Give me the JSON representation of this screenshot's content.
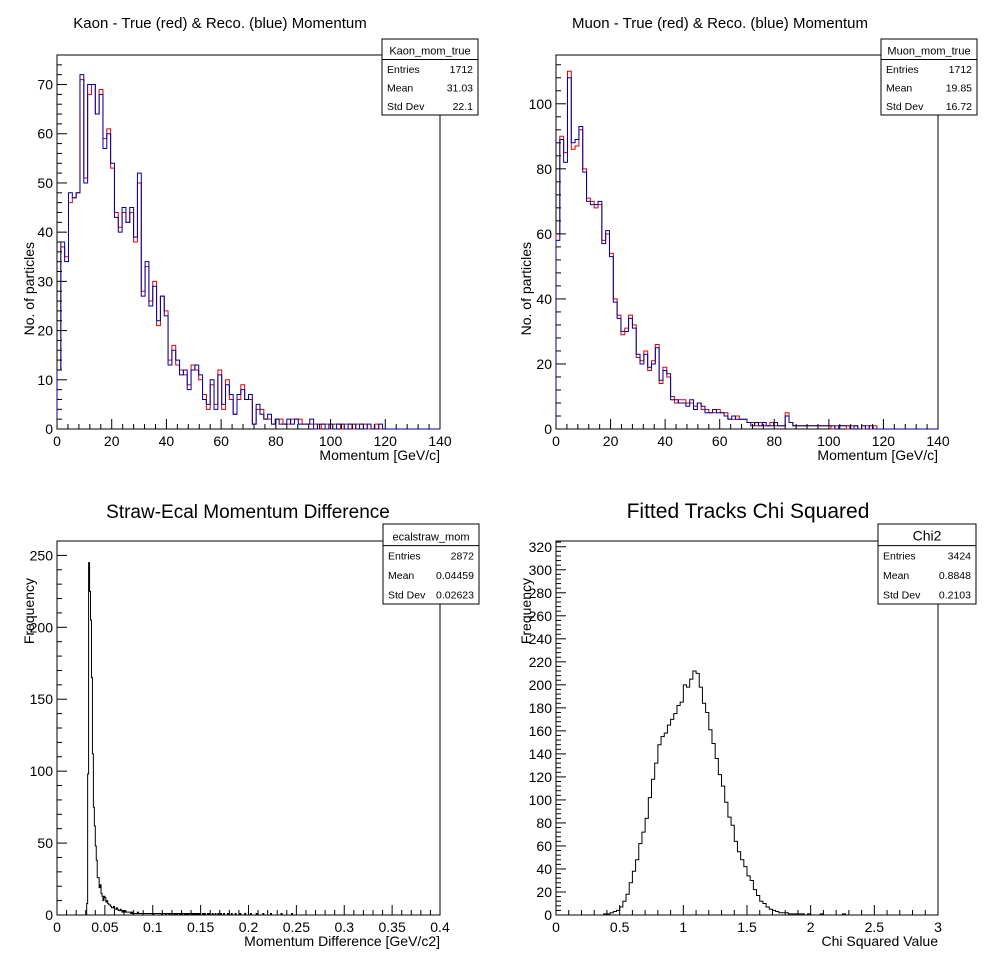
{
  "chart_data": [
    {
      "type": "histogram",
      "title": "Kaon - True (red) & Reco. (blue) Momentum",
      "xlabel": "Momentum [GeV/c]",
      "ylabel": "No. of particles",
      "xlim": [
        0,
        140
      ],
      "ylim": [
        0,
        76
      ],
      "xticks": [
        0,
        20,
        40,
        60,
        80,
        100,
        120,
        140
      ],
      "yticks": [
        0,
        10,
        20,
        30,
        40,
        50,
        60,
        70
      ],
      "stats": {
        "name": "Kaon_mom_true",
        "rows": [
          [
            "Entries",
            "1712"
          ],
          [
            "Mean",
            "31.03"
          ],
          [
            "Std Dev",
            "22.1"
          ]
        ]
      },
      "series": [
        {
          "color": "#e00000",
          "bin_start": 0,
          "bin_width": 1.4,
          "values": [
            12,
            37,
            35,
            46,
            47,
            48,
            71,
            51,
            68,
            70,
            64,
            69,
            59,
            61,
            53,
            44,
            41,
            44,
            42,
            44,
            38,
            50,
            28,
            33,
            26,
            30,
            21,
            27,
            24,
            14,
            17,
            13,
            12,
            11,
            9,
            13,
            12,
            10,
            7,
            4,
            9,
            5,
            12,
            4,
            10,
            6,
            3,
            6,
            9,
            6,
            6,
            1,
            4,
            4,
            2,
            2,
            1,
            2,
            2,
            1,
            1,
            2,
            2,
            2,
            1,
            1,
            1,
            1,
            0,
            1,
            1,
            0,
            1,
            1,
            0,
            1,
            1,
            0,
            1,
            1,
            1,
            0,
            0,
            1,
            0,
            0,
            0,
            0,
            0,
            0,
            0,
            0,
            0,
            0,
            0,
            0,
            0,
            0,
            0,
            0
          ]
        },
        {
          "color": "#00009c",
          "bin_start": 0,
          "bin_width": 1.4,
          "values": [
            12,
            38,
            34,
            48,
            47,
            48,
            72,
            50,
            70,
            70,
            64,
            68,
            57,
            60,
            54,
            43,
            40,
            45,
            42,
            45,
            39,
            52,
            27,
            34,
            25,
            29,
            22,
            27,
            23,
            13,
            16,
            14,
            11,
            12,
            8,
            12,
            13,
            11,
            6,
            5,
            10,
            4,
            11,
            5,
            9,
            7,
            3,
            7,
            8,
            6,
            7,
            1,
            5,
            3,
            2,
            3,
            1,
            2,
            1,
            1,
            2,
            1,
            2,
            1,
            1,
            1,
            2,
            0,
            1,
            1,
            0,
            1,
            0,
            1,
            1,
            0,
            1,
            1,
            0,
            1,
            0,
            1,
            0,
            0,
            1,
            0,
            0,
            0,
            0,
            0,
            0,
            0,
            0,
            0,
            0,
            0,
            0,
            0,
            0,
            0
          ]
        }
      ]
    },
    {
      "type": "histogram",
      "title": "Muon - True (red) & Reco. (blue) Momentum",
      "xlabel": "Momentum [GeV/c]",
      "ylabel": "No. of particles",
      "xlim": [
        0,
        140
      ],
      "ylim": [
        0,
        115
      ],
      "xticks": [
        0,
        20,
        40,
        60,
        80,
        100,
        120,
        140
      ],
      "yticks": [
        0,
        20,
        40,
        60,
        80,
        100
      ],
      "stats": {
        "name": "Muon_mom_true",
        "rows": [
          [
            "Entries",
            "1712"
          ],
          [
            "Mean",
            "19.85"
          ],
          [
            "Std Dev",
            "16.72"
          ]
        ]
      },
      "series": [
        {
          "color": "#e00000",
          "bin_start": 0,
          "bin_width": 1.4,
          "values": [
            60,
            90,
            85,
            110,
            86,
            87,
            92,
            80,
            71,
            70,
            68,
            69,
            58,
            60,
            54,
            40,
            35,
            29,
            31,
            35,
            32,
            22,
            21,
            24,
            18,
            21,
            26,
            14,
            19,
            16,
            10,
            8,
            9,
            9,
            8,
            8,
            7,
            8,
            6,
            6,
            5,
            5,
            6,
            5,
            5,
            3,
            3,
            4,
            3,
            3,
            2,
            2,
            1,
            2,
            1,
            1,
            2,
            1,
            1,
            1,
            5,
            2,
            1,
            1,
            1,
            1,
            1,
            1,
            1,
            1,
            1,
            1,
            0,
            1,
            1,
            1,
            0,
            1,
            1,
            0,
            0,
            1,
            0,
            1,
            0,
            0,
            0,
            0,
            0,
            0,
            0,
            0,
            0,
            0,
            0,
            0,
            0,
            0,
            0,
            0
          ]
        },
        {
          "color": "#00009c",
          "bin_start": 0,
          "bin_width": 1.4,
          "values": [
            58,
            89,
            82,
            108,
            88,
            89,
            93,
            79,
            70,
            69,
            69,
            70,
            57,
            61,
            53,
            39,
            34,
            30,
            30,
            34,
            31,
            23,
            20,
            23,
            19,
            20,
            25,
            15,
            18,
            17,
            9,
            9,
            8,
            8,
            7,
            9,
            6,
            8,
            7,
            5,
            5,
            6,
            5,
            5,
            4,
            3,
            4,
            3,
            3,
            3,
            2,
            1,
            2,
            1,
            2,
            1,
            1,
            2,
            1,
            1,
            4,
            2,
            1,
            1,
            1,
            1,
            1,
            1,
            1,
            1,
            1,
            1,
            1,
            0,
            1,
            1,
            1,
            0,
            1,
            0,
            1,
            0,
            1,
            0,
            0,
            0,
            0,
            0,
            0,
            0,
            0,
            0,
            0,
            0,
            0,
            0,
            0,
            0,
            0,
            0
          ]
        }
      ]
    },
    {
      "type": "histogram",
      "title": "Straw-Ecal Momentum Difference",
      "xlabel": "Momentum Difference [GeV/c2]",
      "ylabel": "Frequency",
      "xlim": [
        0,
        0.4
      ],
      "ylim": [
        0,
        260
      ],
      "xticks": [
        0,
        0.05,
        0.1,
        0.15,
        0.2,
        0.25,
        0.3,
        0.35,
        0.4
      ],
      "xtick_labels": [
        "0",
        "0.05",
        "0.1",
        "0.15",
        "0.2",
        "0.25",
        "0.3",
        "0.35",
        "0.4"
      ],
      "yticks": [
        0,
        50,
        100,
        150,
        200,
        250
      ],
      "stats": {
        "name": "ecalstraw_mom",
        "rows": [
          [
            "Entries",
            "2872"
          ],
          [
            "Mean",
            "0.04459"
          ],
          [
            "Std Dev",
            "0.02623"
          ]
        ]
      },
      "series": [
        {
          "color": "#000000",
          "bin_start": 0.031,
          "bin_width": 0.001,
          "values": [
            8,
            98,
            245,
            225,
            205,
            165,
            112,
            75,
            62,
            48,
            38,
            26,
            26,
            19,
            21,
            15,
            13,
            10,
            13,
            12,
            9,
            10,
            8,
            7,
            7,
            6,
            5,
            5,
            6,
            4,
            4,
            5,
            4,
            3,
            3,
            4,
            3,
            2,
            3,
            2,
            3,
            2,
            2,
            2,
            2,
            2,
            1,
            2,
            1,
            1,
            1,
            1,
            1,
            2,
            1,
            1,
            1,
            1,
            1,
            1,
            1,
            1,
            1,
            1,
            1,
            1,
            1,
            1,
            1,
            0,
            1,
            1,
            1,
            1,
            1,
            1,
            1,
            1,
            0,
            1,
            1,
            1,
            0,
            1,
            1,
            1,
            0,
            1,
            1,
            0,
            1,
            1,
            0,
            1,
            0,
            1,
            1,
            0,
            1,
            0,
            1,
            1,
            0,
            1,
            0,
            1,
            0,
            1,
            1,
            0,
            1,
            0,
            1,
            0,
            1,
            0,
            1,
            0,
            1,
            0,
            0,
            1,
            0,
            1,
            0,
            0,
            1,
            0,
            1,
            0,
            0,
            1,
            0,
            0,
            1,
            0,
            0,
            1,
            0,
            0,
            1,
            0,
            0,
            1,
            0,
            0,
            0,
            1,
            0,
            0,
            0,
            1,
            0,
            0,
            0,
            1,
            0,
            0,
            0,
            0,
            1,
            0,
            0,
            0,
            0,
            1,
            0,
            0,
            0,
            0,
            0,
            1,
            0,
            0,
            0,
            0,
            0,
            1,
            0,
            0,
            0,
            0,
            0,
            0,
            1,
            0,
            0,
            0,
            0,
            0,
            0,
            0,
            1,
            0,
            0,
            0,
            0,
            0,
            0,
            0,
            0,
            0,
            0,
            1,
            0,
            0,
            0,
            0,
            0,
            0,
            0,
            0,
            0,
            0,
            1
          ]
        }
      ]
    },
    {
      "type": "histogram",
      "title": "Fitted Tracks Chi Squared",
      "xlabel": "Chi Squared Value",
      "ylabel": "Frequency",
      "xlim": [
        0,
        3
      ],
      "ylim": [
        0,
        325
      ],
      "xticks": [
        0,
        0.5,
        1,
        1.5,
        2,
        2.5,
        3
      ],
      "xtick_labels": [
        "0",
        "0.5",
        "1",
        "1.5",
        "2",
        "2.5",
        "3"
      ],
      "yticks": [
        0,
        20,
        40,
        60,
        80,
        100,
        120,
        140,
        160,
        180,
        200,
        220,
        240,
        260,
        280,
        300,
        320
      ],
      "stats": {
        "name": "Chi2",
        "rows": [
          [
            "Entries",
            "3424"
          ],
          [
            "Mean",
            "0.8848"
          ],
          [
            "Std Dev",
            "0.2103"
          ]
        ]
      },
      "series": [
        {
          "color": "#000000",
          "bin_start": 0,
          "bin_width": 0.025,
          "values": [
            0,
            0,
            0,
            0,
            0,
            0,
            0,
            0,
            0,
            0,
            0,
            0,
            0,
            0,
            0,
            1,
            1,
            2,
            3,
            4,
            7,
            12,
            18,
            28,
            38,
            48,
            62,
            72,
            84,
            102,
            118,
            132,
            148,
            155,
            158,
            165,
            170,
            175,
            182,
            185,
            200,
            198,
            205,
            212,
            210,
            198,
            184,
            176,
            161,
            149,
            136,
            122,
            112,
            98,
            85,
            78,
            64,
            55,
            48,
            42,
            34,
            30,
            22,
            17,
            12,
            10,
            7,
            5,
            4,
            3,
            2,
            2,
            2,
            1,
            1,
            1,
            1,
            1,
            0,
            1,
            0,
            0,
            0,
            1,
            0,
            0,
            0,
            0,
            0,
            0,
            1,
            0,
            0,
            0,
            0,
            0,
            0,
            0,
            0,
            0,
            0,
            0,
            0,
            0,
            0,
            0,
            0,
            0,
            0,
            0,
            0,
            0,
            0,
            0,
            0,
            0,
            0,
            0,
            0,
            0
          ]
        }
      ]
    }
  ]
}
